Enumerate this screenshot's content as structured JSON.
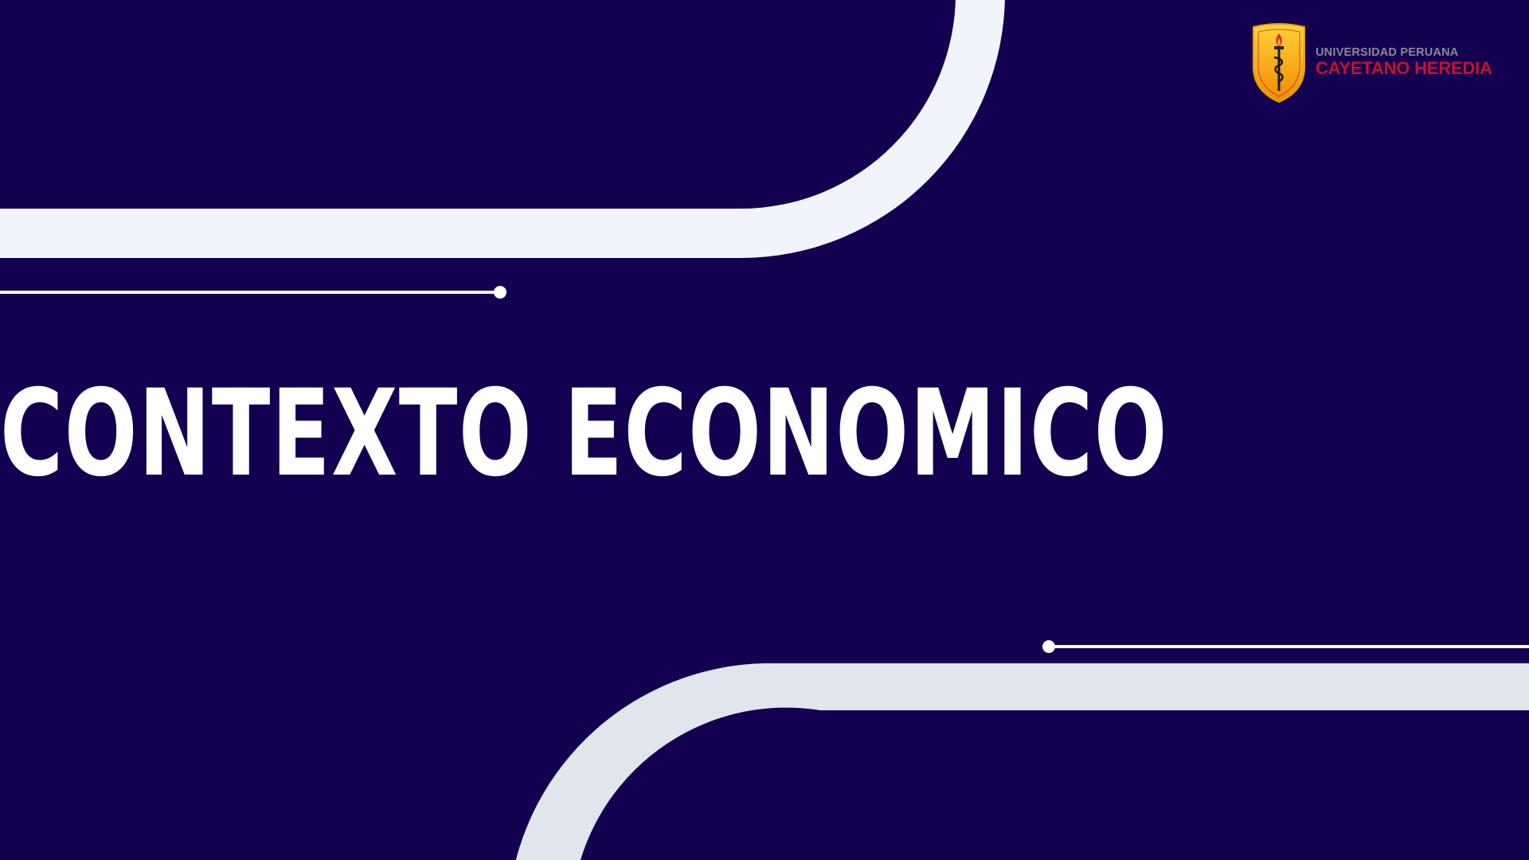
{
  "slide": {
    "title": "CONTEXTO ECONOMICO"
  },
  "logo": {
    "line1": "UNIVERSIDAD PERUANA",
    "line2": "CAYETANO HEREDIA",
    "emblem": "shield-caduceus-torch"
  },
  "colors": {
    "background": "#130050",
    "band": "#f2f4fb",
    "band_lower": "#e1e5ec",
    "title": "#ffffff",
    "logo_gray": "#8a8a9a",
    "logo_red": "#c8102e",
    "shield_gold": "#f5b800"
  }
}
